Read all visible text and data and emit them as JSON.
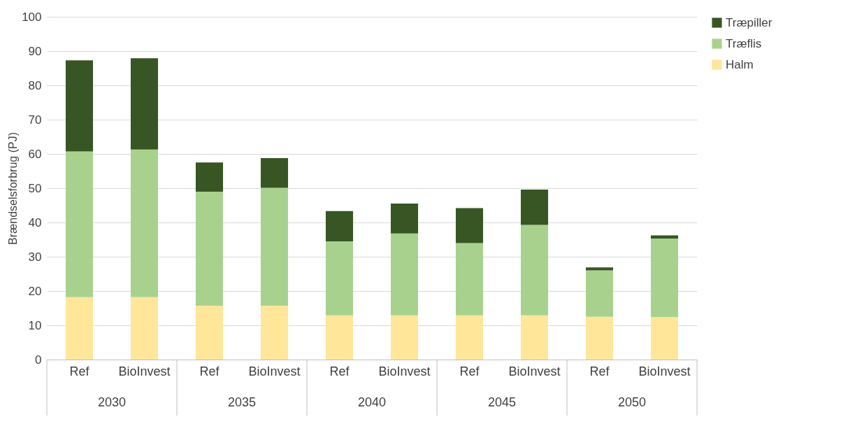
{
  "chart_data": {
    "type": "bar",
    "stacked": true,
    "ylabel": "Brændselsforbrug (PJ)",
    "categories": [
      "Ref",
      "BioInvest",
      "Ref",
      "BioInvest",
      "Ref",
      "BioInvest",
      "Ref",
      "BioInvest",
      "Ref",
      "BioInvest"
    ],
    "annotations": [
      "2030",
      "2035",
      "2040",
      "2045",
      "2050"
    ],
    "series": [
      {
        "name": "Halm",
        "color": "#ffe699",
        "values": [
          18.2,
          18.2,
          15.7,
          15.7,
          12.9,
          12.9,
          12.9,
          12.9,
          12.5,
          12.4
        ]
      },
      {
        "name": "Træflis",
        "color": "#a9d18e",
        "values": [
          42.5,
          43.1,
          33.3,
          34.4,
          21.6,
          23.9,
          21.1,
          26.4,
          13.5,
          22.9
        ]
      },
      {
        "name": "Træpiller",
        "color": "#375623",
        "values": [
          26.6,
          26.6,
          8.5,
          8.7,
          8.8,
          8.7,
          10.2,
          10.3,
          0.9,
          0.9
        ]
      }
    ],
    "ylim": [
      0,
      100
    ],
    "yticks": [
      0,
      10,
      20,
      30,
      40,
      50,
      60,
      70,
      80,
      90,
      100
    ],
    "grid": "y",
    "legend": "right"
  }
}
